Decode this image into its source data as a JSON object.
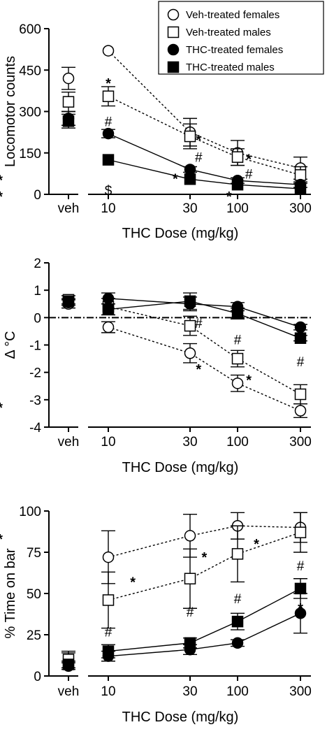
{
  "legend": [
    {
      "label": "Veh-treated females",
      "marker": "circle",
      "fill": "open"
    },
    {
      "label": "Veh-treated males",
      "marker": "square",
      "fill": "open"
    },
    {
      "label": "THC-treated females",
      "marker": "circle",
      "fill": "filled"
    },
    {
      "label": "THC-treated males",
      "marker": "square",
      "fill": "filled"
    }
  ],
  "chart_data": [
    {
      "type": "line",
      "xlabel": "THC Dose (mg/kg)",
      "ylabel": "Locomotor counts",
      "x_ticks": [
        "veh",
        "10",
        "30",
        "100",
        "300"
      ],
      "ylim": [
        0,
        600
      ],
      "y_ticks": [
        0,
        150,
        300,
        450,
        600
      ],
      "zero_line": false,
      "series": [
        {
          "name": "Veh-treated females",
          "marker": "circle",
          "filled": false,
          "dash": true,
          "values": [
            420,
            520,
            225,
            150,
            95
          ],
          "errors": [
            40,
            0,
            50,
            45,
            40
          ]
        },
        {
          "name": "Veh-treated males",
          "marker": "square",
          "filled": false,
          "dash": true,
          "values": [
            335,
            355,
            210,
            135,
            70
          ],
          "errors": [
            35,
            35,
            45,
            30,
            30
          ]
        },
        {
          "name": "THC-treated females",
          "marker": "circle",
          "filled": true,
          "dash": false,
          "values": [
            275,
            220,
            90,
            50,
            35
          ],
          "errors": [
            25,
            15,
            10,
            10,
            10
          ]
        },
        {
          "name": "THC-treated males",
          "marker": "square",
          "filled": true,
          "dash": false,
          "values": [
            265,
            125,
            55,
            35,
            20
          ],
          "errors": [
            25,
            0,
            0,
            0,
            0
          ]
        }
      ],
      "annotations": [
        {
          "text": "*",
          "x": 1,
          "y": 420
        },
        {
          "text": "#",
          "x": 1,
          "y": 265
        },
        {
          "text": "$",
          "x": 1,
          "y": 15
        },
        {
          "text": "*",
          "x": 2.18,
          "y": 215
        },
        {
          "text": "#",
          "x": 2.18,
          "y": 135
        },
        {
          "text": "*",
          "x": 1.82,
          "y": 75
        },
        {
          "text": "*",
          "x": 3.18,
          "y": 145
        },
        {
          "text": "#",
          "x": 3.18,
          "y": 75
        },
        {
          "text": "*",
          "x": 2.82,
          "y": 10
        },
        {
          "text": "*",
          "x": 4.18,
          "y": 70
        },
        {
          "text": "*",
          "x": 4.18,
          "y": 10
        }
      ]
    },
    {
      "type": "line",
      "xlabel": "THC Dose (mg/kg)",
      "ylabel": "Δ °C",
      "x_ticks": [
        "veh",
        "10",
        "30",
        "100",
        "300"
      ],
      "ylim": [
        -4,
        2
      ],
      "y_ticks": [
        -4,
        -3,
        -2,
        -1,
        0,
        1,
        2
      ],
      "zero_line": true,
      "series": [
        {
          "name": "Veh-treated females",
          "marker": "circle",
          "filled": false,
          "dash": true,
          "values": [
            0.5,
            -0.35,
            -1.3,
            -2.4,
            -3.4
          ],
          "errors": [
            0.15,
            0.2,
            0.35,
            0.3,
            0.25
          ]
        },
        {
          "name": "Veh-treated males",
          "marker": "square",
          "filled": false,
          "dash": true,
          "values": [
            0.65,
            0.4,
            -0.3,
            -1.5,
            -2.8
          ],
          "errors": [
            0.15,
            0.3,
            0.35,
            0.3,
            0.35
          ]
        },
        {
          "name": "THC-treated females",
          "marker": "circle",
          "filled": true,
          "dash": false,
          "values": [
            0.55,
            0.7,
            0.5,
            0.4,
            -0.35
          ],
          "errors": [
            0.1,
            0.2,
            0.25,
            0.15,
            0.1
          ]
        },
        {
          "name": "THC-treated males",
          "marker": "square",
          "filled": true,
          "dash": false,
          "values": [
            0.6,
            0.3,
            0.6,
            0.15,
            -0.75
          ],
          "errors": [
            0.1,
            0.2,
            0.3,
            0.2,
            0.1
          ]
        }
      ],
      "annotations": [
        {
          "text": "#",
          "x": 2.18,
          "y": -0.2
        },
        {
          "text": "*",
          "x": 2.18,
          "y": -1.7
        },
        {
          "text": "#",
          "x": 3,
          "y": -0.8
        },
        {
          "text": "*",
          "x": 3.18,
          "y": -2.1
        },
        {
          "text": "#",
          "x": 4,
          "y": -1.6
        },
        {
          "text": "*",
          "x": 4.18,
          "y": -3.1
        }
      ]
    },
    {
      "type": "line",
      "xlabel": "THC Dose (mg/kg)",
      "ylabel": "% Time on bar",
      "x_ticks": [
        "veh",
        "10",
        "30",
        "100",
        "300"
      ],
      "ylim": [
        0,
        100
      ],
      "y_ticks": [
        0,
        25,
        50,
        75,
        100
      ],
      "zero_line": false,
      "series": [
        {
          "name": "Veh-treated females",
          "marker": "circle",
          "filled": false,
          "dash": true,
          "values": [
            9,
            72,
            85,
            91,
            90
          ],
          "errors": [
            5,
            16,
            13,
            8,
            9
          ]
        },
        {
          "name": "Veh-treated males",
          "marker": "square",
          "filled": false,
          "dash": true,
          "values": [
            10,
            46,
            59,
            74,
            87
          ],
          "errors": [
            5,
            17,
            18,
            17,
            12
          ]
        },
        {
          "name": "THC-treated females",
          "marker": "circle",
          "filled": true,
          "dash": false,
          "values": [
            6,
            12,
            16,
            20,
            38
          ],
          "errors": [
            2,
            3,
            3,
            2,
            12
          ]
        },
        {
          "name": "THC-treated males",
          "marker": "square",
          "filled": true,
          "dash": false,
          "values": [
            7,
            15,
            20,
            33,
            53
          ],
          "errors": [
            2,
            4,
            3,
            5,
            6
          ]
        }
      ],
      "annotations": [
        {
          "text": "*",
          "x": 1.3,
          "y": 60
        },
        {
          "text": "#",
          "x": 1,
          "y": 27
        },
        {
          "text": "*",
          "x": 2.3,
          "y": 75
        },
        {
          "text": "#",
          "x": 2,
          "y": 39
        },
        {
          "text": "*",
          "x": 3.3,
          "y": 83
        },
        {
          "text": "#",
          "x": 3,
          "y": 47
        },
        {
          "text": "*",
          "x": 4.18,
          "y": 86
        },
        {
          "text": "#",
          "x": 4,
          "y": 67
        },
        {
          "text": "*",
          "x": 4,
          "y": 44
        }
      ]
    }
  ]
}
